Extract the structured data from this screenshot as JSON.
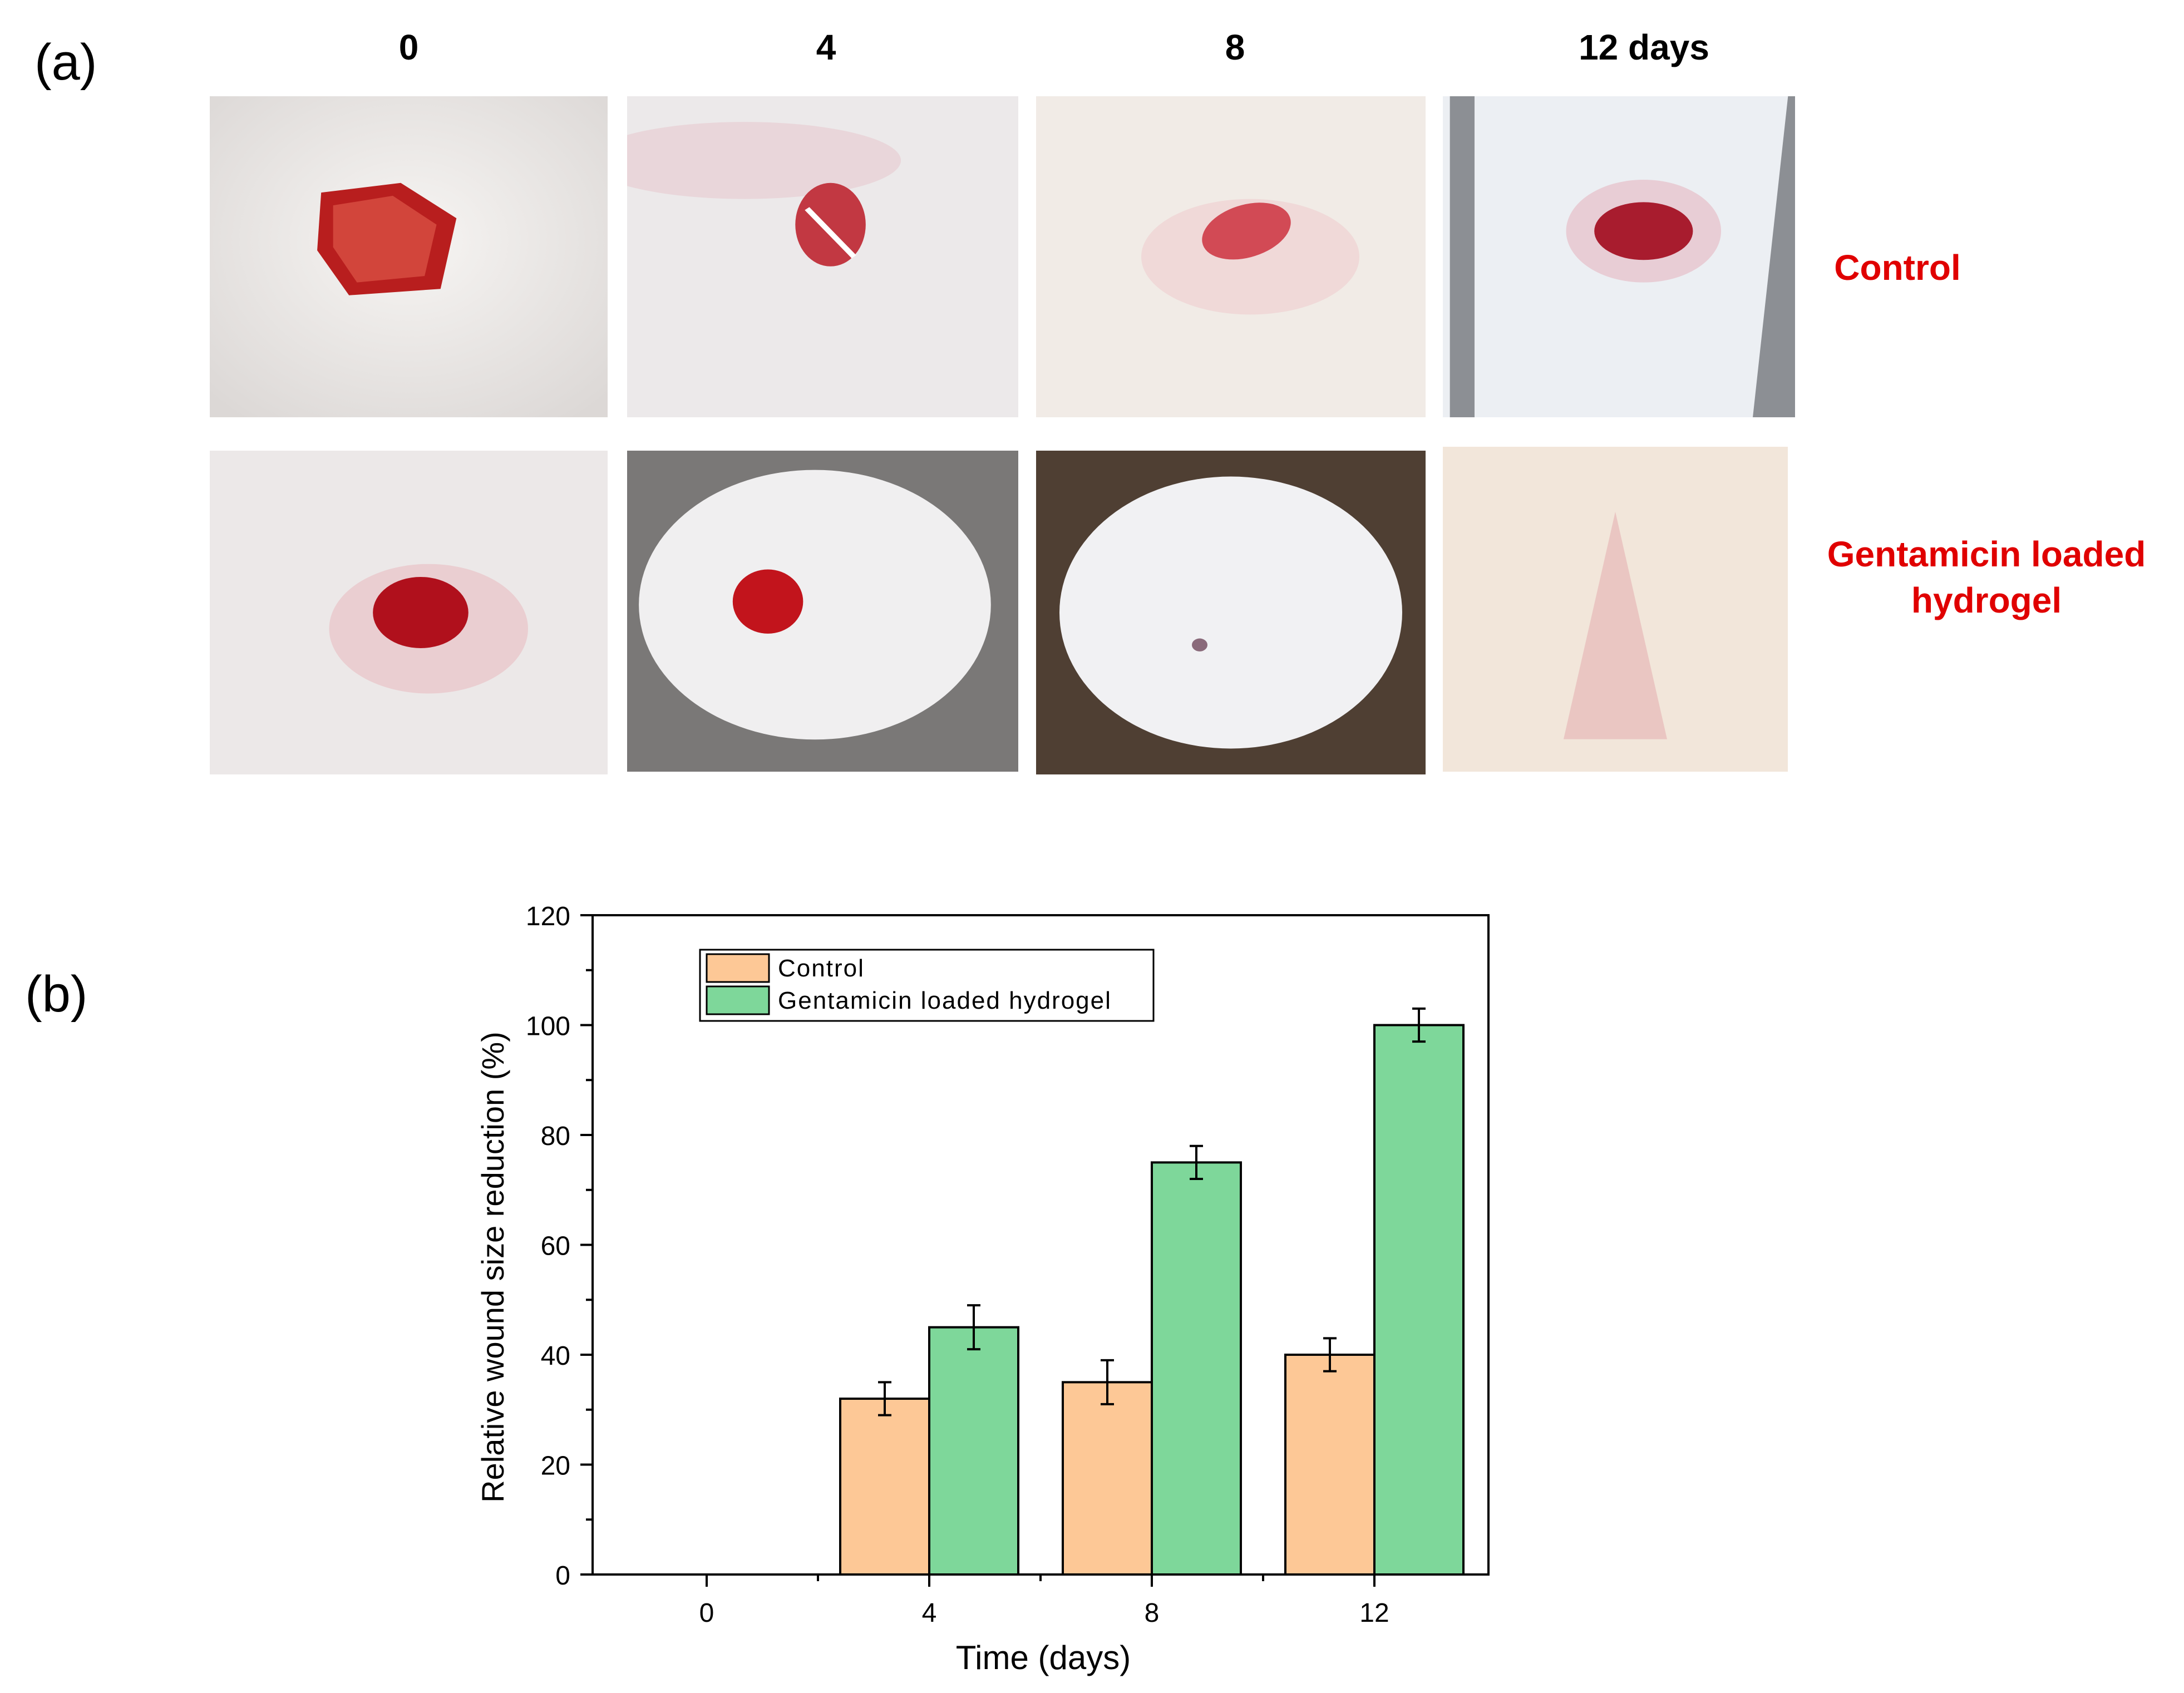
{
  "panel_a": {
    "label": "(a)",
    "columns": [
      "0",
      "4",
      "8",
      "12 days"
    ],
    "rows": [
      "Control",
      "Gentamicin loaded\nhydrogel"
    ],
    "label_color": "#e00000"
  },
  "panel_b": {
    "label": "(b)"
  },
  "chart_data": {
    "type": "bar",
    "categories": [
      "0",
      "4",
      "8",
      "12"
    ],
    "series": [
      {
        "name": "Control",
        "values": [
          0,
          32,
          35,
          40
        ],
        "errors": [
          0,
          3,
          4,
          3
        ],
        "color": "#fdc896"
      },
      {
        "name": "Gentamicin loaded hydrogel",
        "values": [
          0,
          45,
          75,
          100
        ],
        "errors": [
          0,
          4,
          3,
          3
        ],
        "color": "#7ed79a"
      }
    ],
    "xlabel": "Time (days)",
    "ylabel": "Relative wound size reduction (%)",
    "ylim": [
      0,
      120
    ],
    "yticks": [
      0,
      20,
      40,
      60,
      80,
      100,
      120
    ],
    "grid": false,
    "legend": "top-left"
  }
}
